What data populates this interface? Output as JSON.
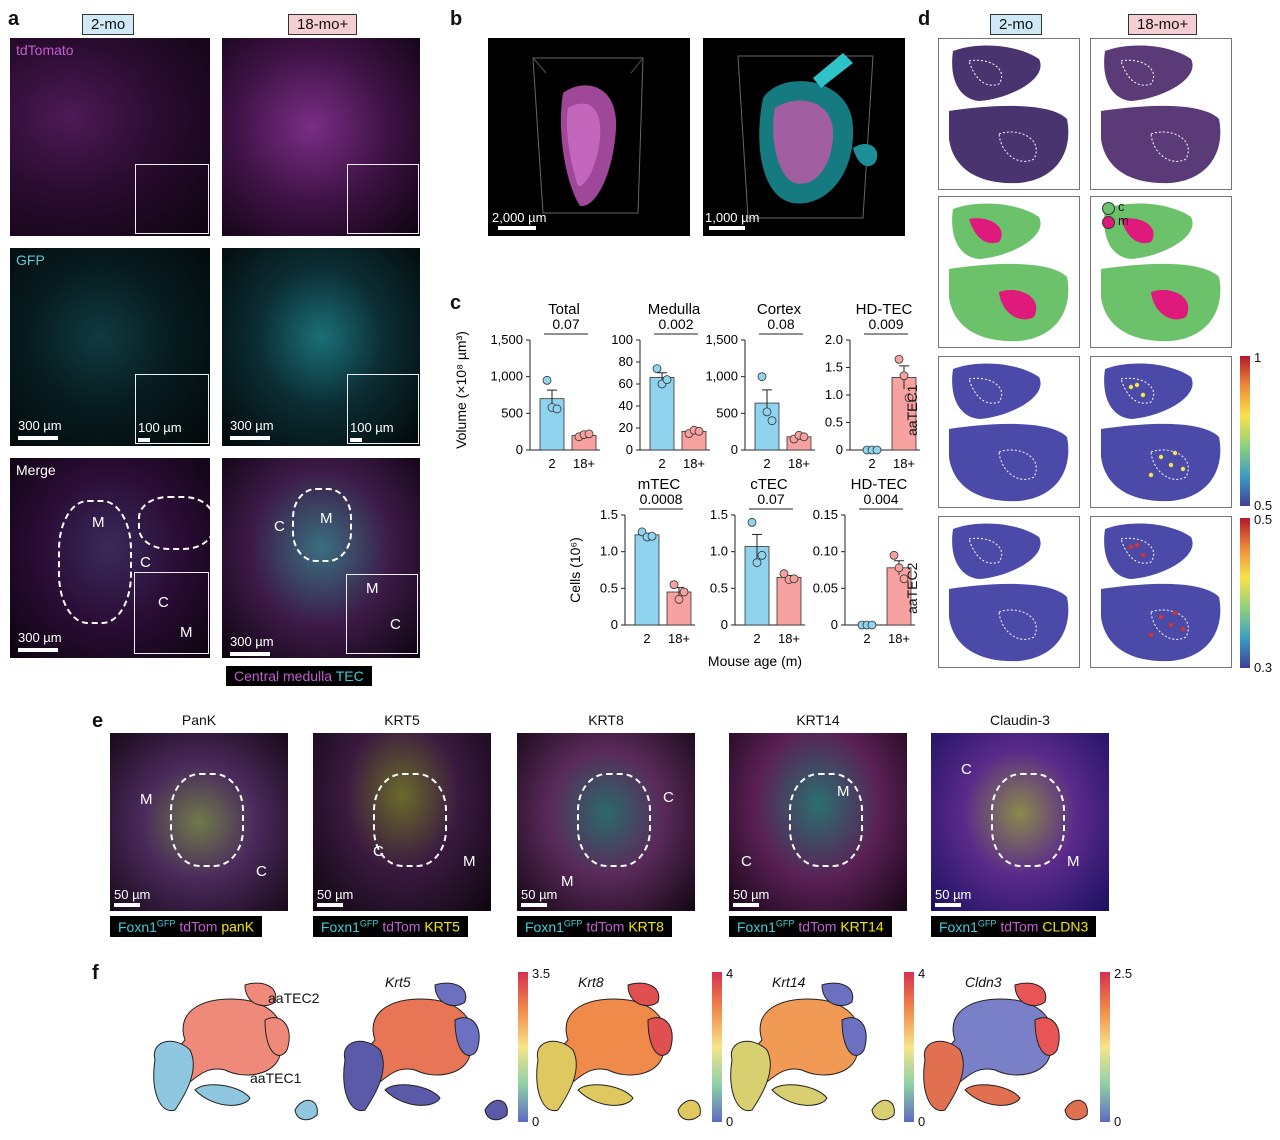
{
  "panels": {
    "a": {
      "letter": "a",
      "age_young": "2-mo",
      "age_old": "18-mo+",
      "channels": [
        "tdTomato",
        "GFP",
        "Merge"
      ],
      "scale_main": "300 µm",
      "scale_inset": "100 µm",
      "regions": {
        "m": "M",
        "c": "C"
      },
      "legend": {
        "part1": "Central medulla",
        "part2": "TEC"
      }
    },
    "b": {
      "letter": "b",
      "scale_left": "2,000 µm",
      "scale_right": "1,000 µm"
    },
    "c": {
      "letter": "c",
      "xlabel": "Mouse age (m)",
      "ylabel_volume": "Volume (×10⁸ µm³)",
      "ylabel_cells": "Cells (10⁶)"
    },
    "d": {
      "letter": "d",
      "age_young": "2-mo",
      "age_old": "18-mo+",
      "legend_c": "c",
      "legend_m": "m",
      "row_labels": [
        "aaTEC1",
        "aaTEC2"
      ],
      "cb1": {
        "max": "1",
        "min": "0.5"
      },
      "cb2": {
        "max": "0.5",
        "min": "0.3"
      }
    },
    "e": {
      "letter": "e",
      "stains": [
        {
          "title": "PanK",
          "marker": "panK",
          "regions": [
            "M",
            "C"
          ]
        },
        {
          "title": "KRT5",
          "marker": "KRT5",
          "regions": [
            "C",
            "M"
          ]
        },
        {
          "title": "KRT8",
          "marker": "KRT8",
          "regions": [
            "C",
            "M"
          ]
        },
        {
          "title": "KRT14",
          "marker": "KRT14",
          "regions": [
            "M",
            "C"
          ]
        },
        {
          "title": "Claudin-3",
          "marker": "CLDN3",
          "regions": [
            "C",
            "M"
          ]
        }
      ],
      "foxn1": "Foxn1",
      "gfp_sup": "GFP",
      "tdtom": "tdTom",
      "scale": "50 µm"
    },
    "f": {
      "letter": "f",
      "cluster_labels": [
        "aaTEC2",
        "aaTEC1"
      ],
      "genes": [
        {
          "name": "Krt5",
          "max": "3.5",
          "min": "0"
        },
        {
          "name": "Krt8",
          "max": "4",
          "min": "0"
        },
        {
          "name": "Krt14",
          "max": "4",
          "min": "0"
        },
        {
          "name": "Cldn3",
          "max": "2.5",
          "min": "0"
        }
      ]
    }
  },
  "chart_data": [
    {
      "type": "bar",
      "title": "Total",
      "categories": [
        "2",
        "18+"
      ],
      "values": [
        700,
        200
      ],
      "points": [
        [
          950,
          580,
          560
        ],
        [
          180,
          210,
          220
        ]
      ],
      "pvalue": "0.07",
      "ylim": [
        0,
        1500
      ],
      "yticks": [
        "0",
        "500",
        "1,000",
        "1,500"
      ],
      "colors": [
        "#8fd3ef",
        "#f7a1a1"
      ]
    },
    {
      "type": "bar",
      "title": "Medulla",
      "categories": [
        "2",
        "18+"
      ],
      "values": [
        66,
        17
      ],
      "points": [
        [
          74,
          60,
          64
        ],
        [
          15,
          18,
          17
        ]
      ],
      "pvalue": "0.002",
      "ylim": [
        0,
        100
      ],
      "yticks": [
        "0",
        "20",
        "40",
        "60",
        "80",
        "100"
      ],
      "colors": [
        "#8fd3ef",
        "#f7a1a1"
      ]
    },
    {
      "type": "bar",
      "title": "Cortex",
      "categories": [
        "2",
        "18+"
      ],
      "values": [
        640,
        180
      ],
      "points": [
        [
          1000,
          520,
          400
        ],
        [
          150,
          200,
          180
        ]
      ],
      "pvalue": "0.08",
      "ylim": [
        0,
        1500
      ],
      "yticks": [
        "0",
        "500",
        "1,000",
        "1,500"
      ],
      "colors": [
        "#8fd3ef",
        "#f7a1a1"
      ]
    },
    {
      "type": "bar",
      "title": "HD-TEC",
      "categories": [
        "2",
        "18+"
      ],
      "values": [
        0,
        1.32
      ],
      "points": [
        [
          0,
          0,
          0
        ],
        [
          1.65,
          1.35,
          0.95
        ]
      ],
      "pvalue": "0.009",
      "ylim": [
        0,
        2.0
      ],
      "yticks": [
        "0",
        "0.5",
        "1.0",
        "1.5",
        "2.0"
      ],
      "colors": [
        "#8fd3ef",
        "#f7a1a1"
      ]
    },
    {
      "type": "bar",
      "title": "mTEC",
      "categories": [
        "2",
        "18+"
      ],
      "values": [
        1.23,
        0.45
      ],
      "points": [
        [
          1.27,
          1.2,
          1.21
        ],
        [
          0.55,
          0.35,
          0.45
        ]
      ],
      "pvalue": "0.0008",
      "ylim": [
        0,
        1.5
      ],
      "yticks": [
        "0",
        "0.5",
        "1.0",
        "1.5"
      ],
      "colors": [
        "#8fd3ef",
        "#f7a1a1"
      ]
    },
    {
      "type": "bar",
      "title": "cTEC",
      "categories": [
        "2",
        "18+"
      ],
      "values": [
        1.07,
        0.65
      ],
      "points": [
        [
          1.4,
          0.85,
          0.95
        ],
        [
          0.7,
          0.62,
          0.63
        ]
      ],
      "pvalue": "0.07",
      "ylim": [
        0,
        1.5
      ],
      "yticks": [
        "0",
        "0.5",
        "1.0",
        "1.5"
      ],
      "colors": [
        "#8fd3ef",
        "#f7a1a1"
      ]
    },
    {
      "type": "bar",
      "title": "HD-TEC",
      "categories": [
        "2",
        "18+"
      ],
      "values": [
        0,
        0.078
      ],
      "points": [
        [
          0,
          0,
          0
        ],
        [
          0.095,
          0.078,
          0.063
        ]
      ],
      "pvalue": "0.004",
      "ylim": [
        0,
        0.15
      ],
      "yticks": [
        "0",
        "0.05",
        "0.10",
        "0.15"
      ],
      "colors": [
        "#8fd3ef",
        "#f7a1a1"
      ]
    }
  ]
}
